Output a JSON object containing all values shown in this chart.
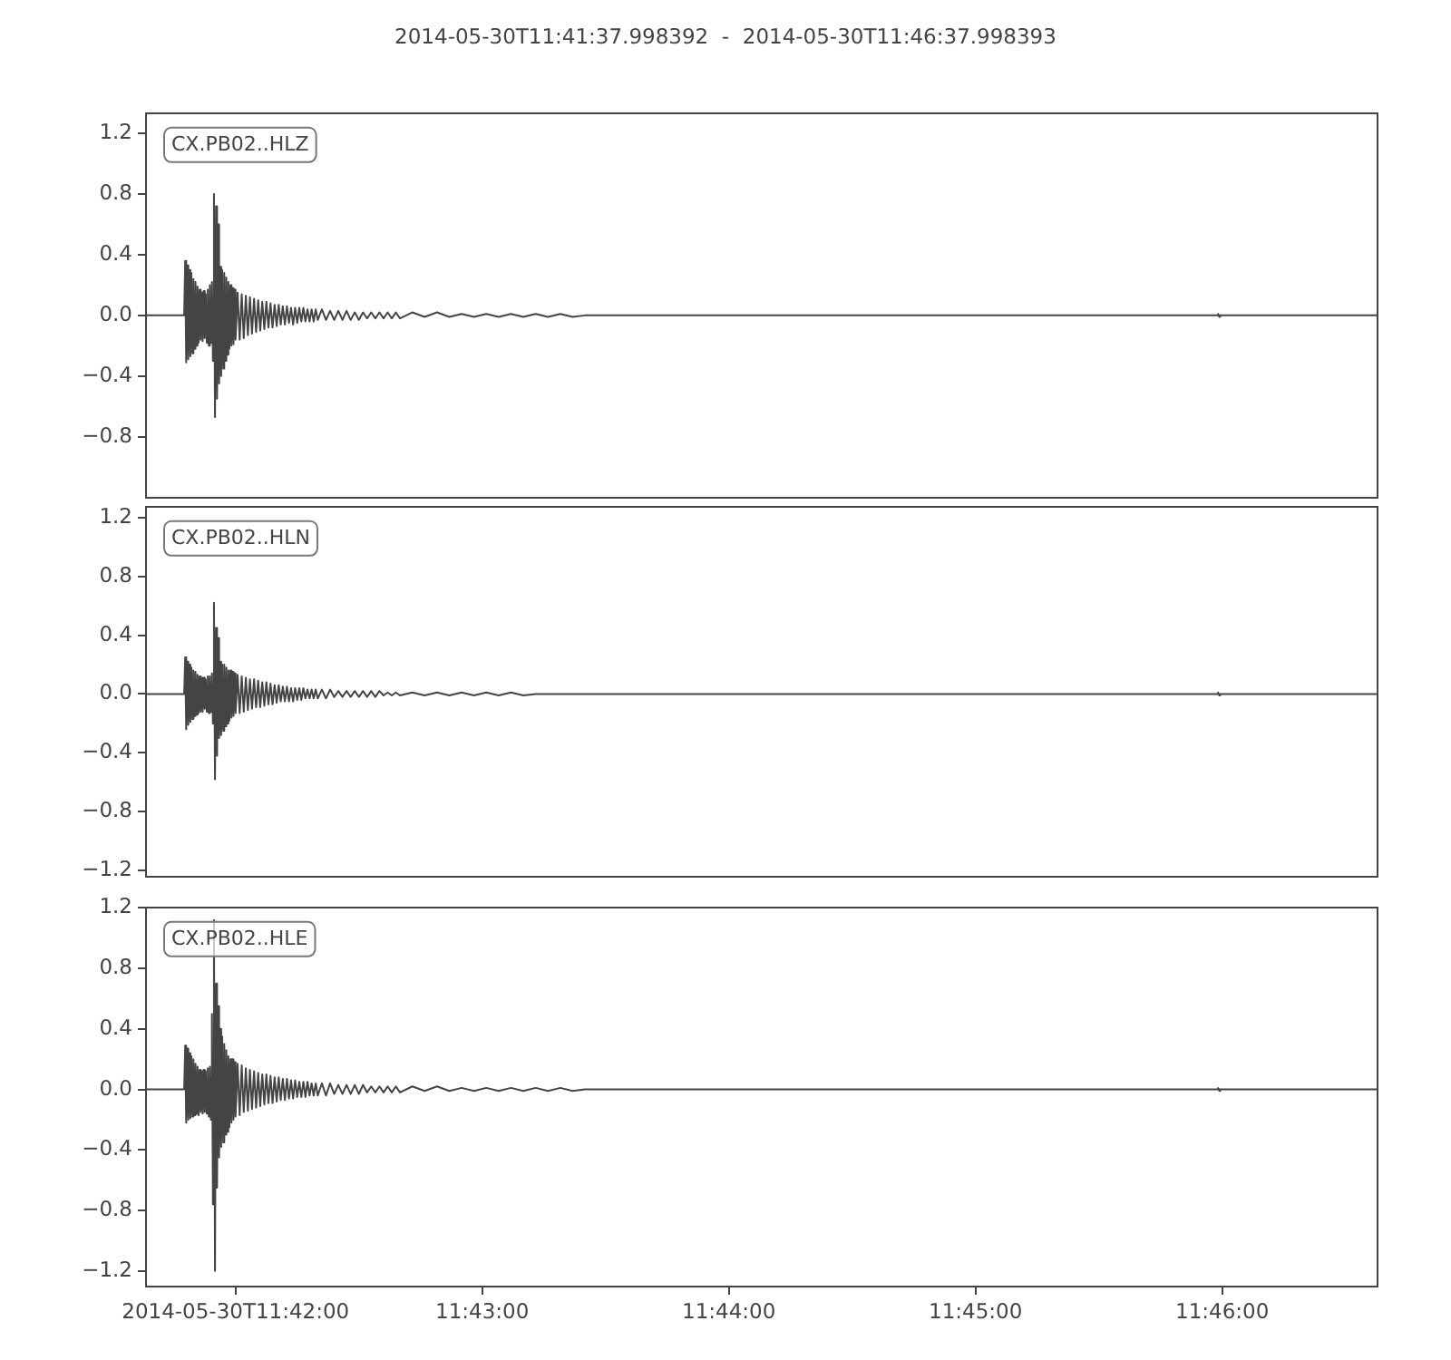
{
  "chart_data": [
    {
      "type": "line",
      "title": "2014-05-30T11:41:37.998392  -  2014-05-30T11:46:37.998393",
      "annotations": [
        "CX.PB02..HLZ"
      ],
      "color": "#444444",
      "marker": "none",
      "tick_labels": "y",
      "x": [
        "2014-05-30T11:41:38",
        "2014-05-30T11:41:47.5",
        "2014-05-30T11:41:47.75",
        "2014-05-30T11:41:48",
        "2014-05-30T11:41:48.25",
        "2014-05-30T11:41:48.5",
        "2014-05-30T11:41:48.75",
        "2014-05-30T11:41:49",
        "2014-05-30T11:41:49.25",
        "2014-05-30T11:41:49.5",
        "2014-05-30T11:41:49.75",
        "2014-05-30T11:41:50",
        "2014-05-30T11:41:50.25",
        "2014-05-30T11:41:50.5",
        "2014-05-30T11:41:50.75",
        "2014-05-30T11:41:51",
        "2014-05-30T11:41:51.25",
        "2014-05-30T11:41:51.5",
        "2014-05-30T11:41:51.75",
        "2014-05-30T11:41:52",
        "2014-05-30T11:41:52.25",
        "2014-05-30T11:41:52.5",
        "2014-05-30T11:41:52.75",
        "2014-05-30T11:41:53",
        "2014-05-30T11:41:53.25",
        "2014-05-30T11:41:53.5",
        "2014-05-30T11:41:53.75",
        "2014-05-30T11:41:54",
        "2014-05-30T11:41:54.25",
        "2014-05-30T11:41:54.5",
        "2014-05-30T11:41:54.75",
        "2014-05-30T11:41:55",
        "2014-05-30T11:41:55.25",
        "2014-05-30T11:41:55.5",
        "2014-05-30T11:41:55.75",
        "2014-05-30T11:41:56",
        "2014-05-30T11:41:56.25",
        "2014-05-30T11:41:56.5",
        "2014-05-30T11:41:56.75",
        "2014-05-30T11:41:57",
        "2014-05-30T11:41:57.25",
        "2014-05-30T11:41:57.5",
        "2014-05-30T11:41:57.75",
        "2014-05-30T11:41:58",
        "2014-05-30T11:41:58.25",
        "2014-05-30T11:41:58.5",
        "2014-05-30T11:41:58.75",
        "2014-05-30T11:41:59",
        "2014-05-30T11:41:59.25",
        "2014-05-30T11:41:59.5",
        "2014-05-30T11:41:59.75",
        "2014-05-30T11:42:00",
        "2014-05-30T11:42:00.5",
        "2014-05-30T11:42:01",
        "2014-05-30T11:42:01.5",
        "2014-05-30T11:42:02",
        "2014-05-30T11:42:02.5",
        "2014-05-30T11:42:03",
        "2014-05-30T11:42:03.5",
        "2014-05-30T11:42:04",
        "2014-05-30T11:42:04.5",
        "2014-05-30T11:42:05",
        "2014-05-30T11:42:05.5",
        "2014-05-30T11:42:06",
        "2014-05-30T11:42:06.5",
        "2014-05-30T11:42:07",
        "2014-05-30T11:42:07.5",
        "2014-05-30T11:42:08",
        "2014-05-30T11:42:08.5",
        "2014-05-30T11:42:09",
        "2014-05-30T11:42:09.5",
        "2014-05-30T11:42:10",
        "2014-05-30T11:42:10.5",
        "2014-05-30T11:42:11",
        "2014-05-30T11:42:11.5",
        "2014-05-30T11:42:12",
        "2014-05-30T11:42:12.5",
        "2014-05-30T11:42:13",
        "2014-05-30T11:42:13.5",
        "2014-05-30T11:42:14",
        "2014-05-30T11:42:14.5",
        "2014-05-30T11:42:15",
        "2014-05-30T11:42:15.5",
        "2014-05-30T11:42:16",
        "2014-05-30T11:42:16.5",
        "2014-05-30T11:42:17",
        "2014-05-30T11:42:17.5",
        "2014-05-30T11:42:18",
        "2014-05-30T11:42:18.5",
        "2014-05-30T11:42:19",
        "2014-05-30T11:42:19.5",
        "2014-05-30T11:42:20",
        "2014-05-30T11:42:21",
        "2014-05-30T11:42:22",
        "2014-05-30T11:42:23",
        "2014-05-30T11:42:24",
        "2014-05-30T11:42:25",
        "2014-05-30T11:42:26",
        "2014-05-30T11:42:27",
        "2014-05-30T11:42:28",
        "2014-05-30T11:42:29",
        "2014-05-30T11:42:30",
        "2014-05-30T11:42:31",
        "2014-05-30T11:42:32",
        "2014-05-30T11:42:33",
        "2014-05-30T11:42:34",
        "2014-05-30T11:42:35",
        "2014-05-30T11:42:36",
        "2014-05-30T11:42:37",
        "2014-05-30T11:42:38",
        "2014-05-30T11:42:39",
        "2014-05-30T11:42:40",
        "2014-05-30T11:42:43",
        "2014-05-30T11:42:46",
        "2014-05-30T11:42:49",
        "2014-05-30T11:42:52",
        "2014-05-30T11:42:55",
        "2014-05-30T11:42:58",
        "2014-05-30T11:43:01",
        "2014-05-30T11:43:04",
        "2014-05-30T11:43:07",
        "2014-05-30T11:43:10",
        "2014-05-30T11:43:13",
        "2014-05-30T11:43:16",
        "2014-05-30T11:43:19",
        "2014-05-30T11:43:22",
        "2014-05-30T11:43:25",
        "2014-05-30T11:45:58.8",
        "2014-05-30T11:45:59",
        "2014-05-30T11:45:59.3",
        "2014-05-30T11:45:59.5",
        "2014-05-30T11:46:37.9"
      ],
      "values": [
        0,
        0,
        0.36,
        -0.31,
        0.33,
        -0.29,
        0.3,
        -0.27,
        0.28,
        -0.25,
        0.24,
        -0.22,
        0.22,
        -0.2,
        0.19,
        -0.18,
        0.17,
        -0.16,
        0.15,
        -0.17,
        0.16,
        -0.15,
        0.14,
        -0.18,
        0.17,
        -0.2,
        0.2,
        -0.18,
        0.22,
        -0.3,
        0.8,
        -0.67,
        0.72,
        -0.55,
        0.6,
        -0.45,
        0.32,
        -0.4,
        0.3,
        -0.35,
        0.28,
        -0.3,
        0.25,
        -0.26,
        0.22,
        -0.22,
        0.2,
        -0.2,
        0.18,
        -0.19,
        0.17,
        -0.16,
        0.15,
        -0.16,
        0.14,
        -0.15,
        0.13,
        -0.13,
        0.12,
        -0.12,
        0.11,
        -0.11,
        0.1,
        -0.1,
        0.09,
        -0.09,
        0.09,
        -0.08,
        0.08,
        -0.08,
        0.07,
        -0.07,
        0.07,
        -0.06,
        0.06,
        -0.06,
        0.06,
        -0.05,
        0.05,
        -0.06,
        0.05,
        -0.05,
        0.05,
        -0.04,
        0.05,
        -0.04,
        0.04,
        -0.04,
        0.04,
        -0.04,
        0.04,
        -0.03,
        0.04,
        -0.03,
        0.03,
        -0.03,
        0.03,
        -0.03,
        0.03,
        -0.03,
        0.02,
        -0.03,
        0.02,
        -0.02,
        0.02,
        -0.02,
        0.02,
        -0.02,
        0.02,
        -0.02,
        0.02,
        -0.02,
        0.02,
        -0.01,
        0.02,
        -0.01,
        0.01,
        -0.01,
        0.01,
        -0.01,
        0.01,
        -0.01,
        0.01,
        -0.01,
        0.01,
        -0.01,
        0,
        0,
        0.01,
        -0.01,
        0,
        0
      ],
      "xlim": [
        "2014-05-30T11:41:37.998",
        "2014-05-30T11:46:37.998"
      ],
      "ylim": [
        -1.21,
        1.34
      ],
      "yticks": [
        {
          "value": 1.2,
          "label": "1.2"
        },
        {
          "value": 0.8,
          "label": "0.8"
        },
        {
          "value": 0.4,
          "label": "0.4"
        },
        {
          "value": 0,
          "label": "0.0"
        },
        {
          "value": -0.4,
          "label": "−0.4"
        },
        {
          "value": -0.8,
          "label": "−0.8"
        }
      ]
    },
    {
      "type": "line",
      "annotations": [
        "CX.PB02..HLN"
      ],
      "color": "#444444",
      "marker": "none",
      "tick_labels": "y",
      "x": [
        "2014-05-30T11:41:38",
        "2014-05-30T11:41:47.5",
        "2014-05-30T11:41:47.75",
        "2014-05-30T11:41:48",
        "2014-05-30T11:41:48.25",
        "2014-05-30T11:41:48.5",
        "2014-05-30T11:41:48.75",
        "2014-05-30T11:41:49",
        "2014-05-30T11:41:49.25",
        "2014-05-30T11:41:49.5",
        "2014-05-30T11:41:49.75",
        "2014-05-30T11:41:50",
        "2014-05-30T11:41:50.25",
        "2014-05-30T11:41:50.5",
        "2014-05-30T11:41:50.75",
        "2014-05-30T11:41:51",
        "2014-05-30T11:41:51.25",
        "2014-05-30T11:41:51.5",
        "2014-05-30T11:41:51.75",
        "2014-05-30T11:41:52",
        "2014-05-30T11:41:52.25",
        "2014-05-30T11:41:52.5",
        "2014-05-30T11:41:52.75",
        "2014-05-30T11:41:53",
        "2014-05-30T11:41:53.25",
        "2014-05-30T11:41:53.5",
        "2014-05-30T11:41:53.75",
        "2014-05-30T11:41:54",
        "2014-05-30T11:41:54.25",
        "2014-05-30T11:41:54.5",
        "2014-05-30T11:41:54.75",
        "2014-05-30T11:41:55",
        "2014-05-30T11:41:55.25",
        "2014-05-30T11:41:55.5",
        "2014-05-30T11:41:55.75",
        "2014-05-30T11:41:56",
        "2014-05-30T11:41:56.25",
        "2014-05-30T11:41:56.5",
        "2014-05-30T11:41:56.75",
        "2014-05-30T11:41:57",
        "2014-05-30T11:41:57.25",
        "2014-05-30T11:41:57.5",
        "2014-05-30T11:41:57.75",
        "2014-05-30T11:41:58",
        "2014-05-30T11:41:58.25",
        "2014-05-30T11:41:58.5",
        "2014-05-30T11:41:58.75",
        "2014-05-30T11:41:59",
        "2014-05-30T11:41:59.25",
        "2014-05-30T11:41:59.5",
        "2014-05-30T11:41:59.75",
        "2014-05-30T11:42:00",
        "2014-05-30T11:42:00.5",
        "2014-05-30T11:42:01",
        "2014-05-30T11:42:01.5",
        "2014-05-30T11:42:02",
        "2014-05-30T11:42:02.5",
        "2014-05-30T11:42:03",
        "2014-05-30T11:42:03.5",
        "2014-05-30T11:42:04",
        "2014-05-30T11:42:04.5",
        "2014-05-30T11:42:05",
        "2014-05-30T11:42:05.5",
        "2014-05-30T11:42:06",
        "2014-05-30T11:42:06.5",
        "2014-05-30T11:42:07",
        "2014-05-30T11:42:07.5",
        "2014-05-30T11:42:08",
        "2014-05-30T11:42:08.5",
        "2014-05-30T11:42:09",
        "2014-05-30T11:42:09.5",
        "2014-05-30T11:42:10",
        "2014-05-30T11:42:10.5",
        "2014-05-30T11:42:11",
        "2014-05-30T11:42:11.5",
        "2014-05-30T11:42:12",
        "2014-05-30T11:42:12.5",
        "2014-05-30T11:42:13",
        "2014-05-30T11:42:13.5",
        "2014-05-30T11:42:14",
        "2014-05-30T11:42:14.5",
        "2014-05-30T11:42:15",
        "2014-05-30T11:42:15.5",
        "2014-05-30T11:42:16",
        "2014-05-30T11:42:16.5",
        "2014-05-30T11:42:17",
        "2014-05-30T11:42:17.5",
        "2014-05-30T11:42:18",
        "2014-05-30T11:42:18.5",
        "2014-05-30T11:42:19",
        "2014-05-30T11:42:19.5",
        "2014-05-30T11:42:20",
        "2014-05-30T11:42:21",
        "2014-05-30T11:42:22",
        "2014-05-30T11:42:23",
        "2014-05-30T11:42:24",
        "2014-05-30T11:42:25",
        "2014-05-30T11:42:26",
        "2014-05-30T11:42:27",
        "2014-05-30T11:42:28",
        "2014-05-30T11:42:29",
        "2014-05-30T11:42:30",
        "2014-05-30T11:42:31",
        "2014-05-30T11:42:32",
        "2014-05-30T11:42:33",
        "2014-05-30T11:42:34",
        "2014-05-30T11:42:35",
        "2014-05-30T11:42:36",
        "2014-05-30T11:42:37",
        "2014-05-30T11:42:38",
        "2014-05-30T11:42:39",
        "2014-05-30T11:42:40",
        "2014-05-30T11:42:43",
        "2014-05-30T11:42:46",
        "2014-05-30T11:42:49",
        "2014-05-30T11:42:52",
        "2014-05-30T11:42:55",
        "2014-05-30T11:42:58",
        "2014-05-30T11:43:01",
        "2014-05-30T11:43:04",
        "2014-05-30T11:43:07",
        "2014-05-30T11:43:10",
        "2014-05-30T11:43:13",
        "2014-05-30T11:43:16",
        "2014-05-30T11:43:19",
        "2014-05-30T11:43:22",
        "2014-05-30T11:43:25",
        "2014-05-30T11:45:58.8",
        "2014-05-30T11:45:59",
        "2014-05-30T11:45:59.3",
        "2014-05-30T11:45:59.5",
        "2014-05-30T11:46:37.9"
      ],
      "values": [
        0,
        0,
        0.25,
        -0.24,
        0.22,
        -0.21,
        0.2,
        -0.19,
        0.18,
        -0.17,
        0.16,
        -0.15,
        0.15,
        -0.14,
        0.13,
        -0.13,
        0.12,
        -0.12,
        0.11,
        -0.12,
        0.11,
        -0.1,
        0.1,
        -0.12,
        0.12,
        -0.13,
        0.12,
        -0.12,
        0.14,
        -0.2,
        0.62,
        -0.58,
        0.45,
        -0.42,
        0.38,
        -0.3,
        0.22,
        -0.28,
        0.2,
        -0.25,
        0.2,
        -0.22,
        0.18,
        -0.2,
        0.16,
        -0.18,
        0.16,
        -0.16,
        0.15,
        -0.15,
        0.14,
        -0.13,
        0.13,
        -0.13,
        0.12,
        -0.12,
        0.11,
        -0.11,
        0.1,
        -0.1,
        0.1,
        -0.09,
        0.09,
        -0.09,
        0.08,
        -0.08,
        0.08,
        -0.07,
        0.07,
        -0.07,
        0.06,
        -0.06,
        0.06,
        -0.05,
        0.05,
        -0.05,
        0.05,
        -0.05,
        0.04,
        -0.05,
        0.04,
        -0.04,
        0.04,
        -0.04,
        0.04,
        -0.03,
        0.03,
        -0.03,
        0.03,
        -0.03,
        0.03,
        -0.03,
        0.03,
        -0.03,
        0.03,
        -0.02,
        0.02,
        -0.02,
        0.02,
        -0.02,
        0.02,
        -0.02,
        0.02,
        -0.02,
        0.02,
        -0.02,
        0.02,
        -0.01,
        0.01,
        -0.01,
        0.01,
        -0.01,
        0.01,
        -0.01,
        0.01,
        -0.01,
        0.01,
        -0.01,
        0.01,
        -0.01,
        0.01,
        -0.01,
        0,
        0,
        0,
        0,
        0,
        0,
        0.01,
        -0.01,
        0,
        0
      ],
      "xlim": [
        "2014-05-30T11:41:37.998",
        "2014-05-30T11:46:37.998"
      ],
      "ylim": [
        -1.25,
        1.28
      ],
      "yticks": [
        {
          "value": 1.2,
          "label": "1.2"
        },
        {
          "value": 0.8,
          "label": "0.8"
        },
        {
          "value": 0.4,
          "label": "0.4"
        },
        {
          "value": 0,
          "label": "0.0"
        },
        {
          "value": -0.4,
          "label": "−0.4"
        },
        {
          "value": -0.8,
          "label": "−0.8"
        },
        {
          "value": -1.2,
          "label": "−1.2"
        }
      ]
    },
    {
      "type": "line",
      "annotations": [
        "CX.PB02..HLE"
      ],
      "color": "#444444",
      "marker": "none",
      "x": [
        "2014-05-30T11:41:38",
        "2014-05-30T11:41:47.5",
        "2014-05-30T11:41:47.75",
        "2014-05-30T11:41:48",
        "2014-05-30T11:41:48.25",
        "2014-05-30T11:41:48.5",
        "2014-05-30T11:41:48.75",
        "2014-05-30T11:41:49",
        "2014-05-30T11:41:49.25",
        "2014-05-30T11:41:49.5",
        "2014-05-30T11:41:49.75",
        "2014-05-30T11:41:50",
        "2014-05-30T11:41:50.25",
        "2014-05-30T11:41:50.5",
        "2014-05-30T11:41:50.75",
        "2014-05-30T11:41:51",
        "2014-05-30T11:41:51.25",
        "2014-05-30T11:41:51.5",
        "2014-05-30T11:41:51.75",
        "2014-05-30T11:41:52",
        "2014-05-30T11:41:52.25",
        "2014-05-30T11:41:52.5",
        "2014-05-30T11:41:52.75",
        "2014-05-30T11:41:53",
        "2014-05-30T11:41:53.25",
        "2014-05-30T11:41:53.5",
        "2014-05-30T11:41:53.75",
        "2014-05-30T11:41:54",
        "2014-05-30T11:41:54.25",
        "2014-05-30T11:41:54.5",
        "2014-05-30T11:41:54.75",
        "2014-05-30T11:41:55",
        "2014-05-30T11:41:55.25",
        "2014-05-30T11:41:55.5",
        "2014-05-30T11:41:55.75",
        "2014-05-30T11:41:56",
        "2014-05-30T11:41:56.25",
        "2014-05-30T11:41:56.5",
        "2014-05-30T11:41:56.75",
        "2014-05-30T11:41:57",
        "2014-05-30T11:41:57.25",
        "2014-05-30T11:41:57.5",
        "2014-05-30T11:41:57.75",
        "2014-05-30T11:41:58",
        "2014-05-30T11:41:58.25",
        "2014-05-30T11:41:58.5",
        "2014-05-30T11:41:58.75",
        "2014-05-30T11:41:59",
        "2014-05-30T11:41:59.25",
        "2014-05-30T11:41:59.5",
        "2014-05-30T11:41:59.75",
        "2014-05-30T11:42:00",
        "2014-05-30T11:42:00.5",
        "2014-05-30T11:42:01",
        "2014-05-30T11:42:01.5",
        "2014-05-30T11:42:02",
        "2014-05-30T11:42:02.5",
        "2014-05-30T11:42:03",
        "2014-05-30T11:42:03.5",
        "2014-05-30T11:42:04",
        "2014-05-30T11:42:04.5",
        "2014-05-30T11:42:05",
        "2014-05-30T11:42:05.5",
        "2014-05-30T11:42:06",
        "2014-05-30T11:42:06.5",
        "2014-05-30T11:42:07",
        "2014-05-30T11:42:07.5",
        "2014-05-30T11:42:08",
        "2014-05-30T11:42:08.5",
        "2014-05-30T11:42:09",
        "2014-05-30T11:42:09.5",
        "2014-05-30T11:42:10",
        "2014-05-30T11:42:10.5",
        "2014-05-30T11:42:11",
        "2014-05-30T11:42:11.5",
        "2014-05-30T11:42:12",
        "2014-05-30T11:42:12.5",
        "2014-05-30T11:42:13",
        "2014-05-30T11:42:13.5",
        "2014-05-30T11:42:14",
        "2014-05-30T11:42:14.5",
        "2014-05-30T11:42:15",
        "2014-05-30T11:42:15.5",
        "2014-05-30T11:42:16",
        "2014-05-30T11:42:16.5",
        "2014-05-30T11:42:17",
        "2014-05-30T11:42:17.5",
        "2014-05-30T11:42:18",
        "2014-05-30T11:42:18.5",
        "2014-05-30T11:42:19",
        "2014-05-30T11:42:19.5",
        "2014-05-30T11:42:20",
        "2014-05-30T11:42:21",
        "2014-05-30T11:42:22",
        "2014-05-30T11:42:23",
        "2014-05-30T11:42:24",
        "2014-05-30T11:42:25",
        "2014-05-30T11:42:26",
        "2014-05-30T11:42:27",
        "2014-05-30T11:42:28",
        "2014-05-30T11:42:29",
        "2014-05-30T11:42:30",
        "2014-05-30T11:42:31",
        "2014-05-30T11:42:32",
        "2014-05-30T11:42:33",
        "2014-05-30T11:42:34",
        "2014-05-30T11:42:35",
        "2014-05-30T11:42:36",
        "2014-05-30T11:42:37",
        "2014-05-30T11:42:38",
        "2014-05-30T11:42:39",
        "2014-05-30T11:42:40",
        "2014-05-30T11:42:43",
        "2014-05-30T11:42:46",
        "2014-05-30T11:42:49",
        "2014-05-30T11:42:52",
        "2014-05-30T11:42:55",
        "2014-05-30T11:42:58",
        "2014-05-30T11:43:01",
        "2014-05-30T11:43:04",
        "2014-05-30T11:43:07",
        "2014-05-30T11:43:10",
        "2014-05-30T11:43:13",
        "2014-05-30T11:43:16",
        "2014-05-30T11:43:19",
        "2014-05-30T11:43:22",
        "2014-05-30T11:43:25",
        "2014-05-30T11:45:58.8",
        "2014-05-30T11:45:59",
        "2014-05-30T11:45:59.3",
        "2014-05-30T11:45:59.5",
        "2014-05-30T11:46:37.9"
      ],
      "values": [
        0,
        0,
        0.29,
        -0.22,
        0.27,
        -0.2,
        0.24,
        -0.19,
        0.22,
        -0.18,
        0.2,
        -0.17,
        0.17,
        -0.16,
        0.15,
        -0.17,
        0.13,
        -0.15,
        0.12,
        -0.16,
        0.13,
        -0.15,
        0.12,
        -0.16,
        0.14,
        -0.18,
        0.15,
        -0.2,
        0.5,
        -0.76,
        1.12,
        -1.2,
        0.7,
        -0.65,
        0.55,
        -0.45,
        0.4,
        -0.38,
        0.35,
        -0.35,
        0.3,
        -0.3,
        0.26,
        -0.28,
        0.22,
        -0.25,
        0.2,
        -0.22,
        0.2,
        -0.2,
        0.18,
        -0.18,
        0.17,
        -0.17,
        0.16,
        -0.15,
        0.14,
        -0.14,
        0.13,
        -0.13,
        0.12,
        -0.12,
        0.11,
        -0.11,
        0.1,
        -0.1,
        0.1,
        -0.09,
        0.09,
        -0.09,
        0.08,
        -0.08,
        0.08,
        -0.07,
        0.07,
        -0.07,
        0.07,
        -0.06,
        0.06,
        -0.06,
        0.06,
        -0.05,
        0.05,
        -0.05,
        0.05,
        -0.05,
        0.05,
        -0.04,
        0.04,
        -0.04,
        0.04,
        -0.04,
        0.04,
        -0.04,
        0.04,
        -0.03,
        0.03,
        -0.03,
        0.03,
        -0.03,
        0.03,
        -0.03,
        0.03,
        -0.02,
        0.02,
        -0.02,
        0.02,
        -0.02,
        0.02,
        -0.02,
        0.02,
        -0.02,
        0.02,
        -0.01,
        0.02,
        -0.01,
        0.01,
        -0.01,
        0.01,
        -0.01,
        0.01,
        -0.01,
        0.01,
        -0.01,
        0.01,
        -0.01,
        0,
        0,
        0.01,
        -0.01,
        0,
        0
      ],
      "xlim": [
        "2014-05-30T11:41:37.998",
        "2014-05-30T11:46:37.998"
      ],
      "ylim": [
        -1.31,
        1.21
      ],
      "xticks": [
        {
          "value": "2014-05-30T11:42:00",
          "label": "2014-05-30T11:42:00"
        },
        {
          "value": "2014-05-30T11:43:00",
          "label": "11:43:00"
        },
        {
          "value": "2014-05-30T11:44:00",
          "label": "11:44:00"
        },
        {
          "value": "2014-05-30T11:45:00",
          "label": "11:45:00"
        },
        {
          "value": "2014-05-30T11:46:00",
          "label": "11:46:00"
        }
      ],
      "yticks": [
        {
          "value": 1.2,
          "label": "1.2"
        },
        {
          "value": 0.8,
          "label": "0.8"
        },
        {
          "value": 0.4,
          "label": "0.4"
        },
        {
          "value": 0,
          "label": "0.0"
        },
        {
          "value": -0.4,
          "label": "−0.4"
        },
        {
          "value": -0.8,
          "label": "−0.8"
        },
        {
          "value": -1.2,
          "label": "−1.2"
        }
      ]
    }
  ]
}
